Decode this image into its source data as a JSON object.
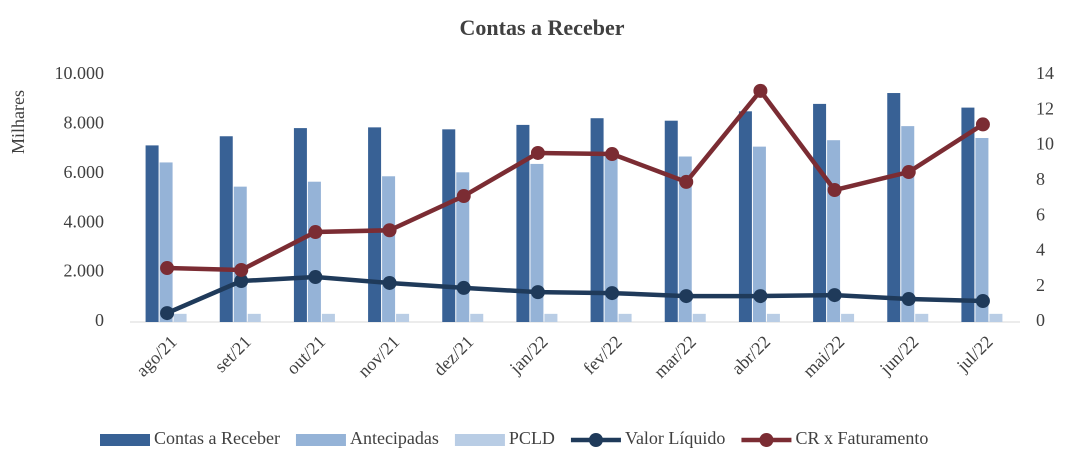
{
  "chart_data": {
    "type": "bar",
    "title": "Contas a Receber",
    "y_label": "Milhares",
    "categories": [
      "ago/21",
      "set/21",
      "out/21",
      "nov/21",
      "dez/21",
      "jan/22",
      "fev/22",
      "mar/22",
      "abr/22",
      "mai/22",
      "jun/22",
      "jul/22"
    ],
    "series": [
      {
        "name": "Contas a Receber",
        "type": "bar",
        "color": "#386195",
        "values": [
          7150,
          7520,
          7850,
          7880,
          7800,
          7980,
          8250,
          8150,
          8530,
          8830,
          9270,
          8680
        ]
      },
      {
        "name": "Antecipadas",
        "type": "bar",
        "color": "#95b3d7",
        "values": [
          6460,
          5480,
          5680,
          5900,
          6060,
          6400,
          6900,
          6700,
          7100,
          7360,
          7930,
          7450
        ]
      },
      {
        "name": "PCLD",
        "type": "bar",
        "color": "#b9cde5",
        "values": [
          330,
          330,
          330,
          330,
          330,
          330,
          330,
          330,
          330,
          330,
          330,
          330
        ]
      },
      {
        "name": "Valor Líquido",
        "type": "line",
        "color": "#1f3a5a",
        "values": [
          360,
          1660,
          1820,
          1580,
          1380,
          1210,
          1170,
          1050,
          1050,
          1090,
          930,
          850
        ]
      },
      {
        "name": "CR x Faturamento",
        "type": "line",
        "axis": "y2",
        "color": "#7b2c33",
        "values": [
          3.06,
          2.95,
          5.1,
          5.2,
          7.14,
          9.58,
          9.52,
          7.94,
          13.1,
          7.48,
          8.5,
          11.2
        ]
      }
    ],
    "ylim": [
      0,
      10000
    ],
    "yticks": [
      0,
      {
        "value": 2000,
        "label": "2.000"
      },
      {
        "value": 4000,
        "label": "4.000"
      },
      {
        "value": 6000,
        "label": "6.000"
      },
      {
        "value": 8000,
        "label": "8.000"
      },
      {
        "value": 10000,
        "label": "10.000"
      }
    ],
    "y2lim": [
      0,
      14
    ],
    "y2ticks": [
      0,
      2,
      4,
      6,
      8,
      10,
      12,
      14
    ],
    "legend": "bottom"
  }
}
